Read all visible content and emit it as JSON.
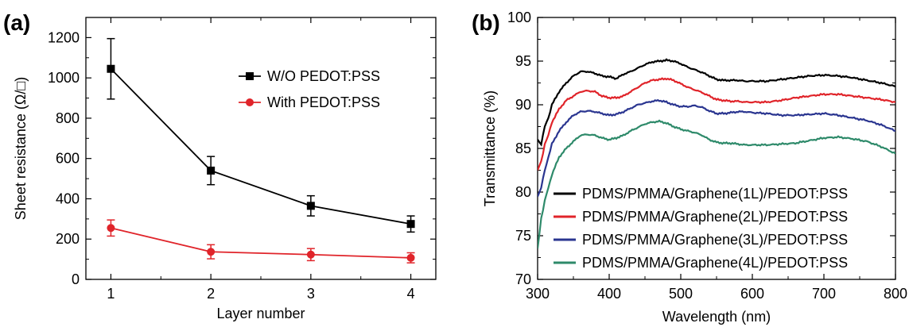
{
  "chart_data": [
    {
      "panel_label": "(a)",
      "type": "line",
      "xlabel": "Layer number",
      "ylabel": "Sheet resistance (Ω/□)",
      "xlim": [
        0.75,
        4.25
      ],
      "ylim": [
        0,
        1300
      ],
      "xticks": [
        1,
        2,
        3,
        4
      ],
      "yticks": [
        0,
        200,
        400,
        600,
        800,
        1000,
        1200
      ],
      "legend_placement": "top-right",
      "grid": false,
      "series": [
        {
          "name": "W/O PEDOT:PSS",
          "color": "#000000",
          "marker": "square",
          "x": [
            1,
            2,
            3,
            4
          ],
          "y": [
            1045,
            540,
            365,
            275
          ],
          "err": [
            150,
            70,
            50,
            40
          ]
        },
        {
          "name": "With PEDOT:PSS",
          "color": "#e0242a",
          "marker": "circle",
          "x": [
            1,
            2,
            3,
            4
          ],
          "y": [
            255,
            137,
            123,
            107
          ],
          "err": [
            40,
            35,
            30,
            25
          ]
        }
      ]
    },
    {
      "panel_label": "(b)",
      "type": "line",
      "xlabel": "Wavelength (nm)",
      "ylabel": "Transmittance (%)",
      "xlim": [
        300,
        800
      ],
      "ylim": [
        70,
        100
      ],
      "xticks": [
        300,
        400,
        500,
        600,
        700,
        800
      ],
      "yticks": [
        70,
        75,
        80,
        85,
        90,
        95,
        100
      ],
      "legend_placement": "bottom-right",
      "grid": false,
      "series": [
        {
          "name": "PDMS/PMMA/Graphene(1L)/PEDOT:PSS",
          "color": "#000000",
          "x": [
            300,
            305,
            310,
            315,
            320,
            330,
            340,
            350,
            360,
            370,
            380,
            390,
            400,
            410,
            420,
            430,
            440,
            450,
            460,
            470,
            480,
            490,
            500,
            510,
            520,
            530,
            540,
            550,
            560,
            570,
            580,
            590,
            600,
            620,
            640,
            660,
            680,
            700,
            720,
            740,
            760,
            780,
            800
          ],
          "y": [
            86.0,
            85.5,
            87.5,
            88.5,
            90.0,
            91.5,
            92.5,
            93.3,
            93.8,
            93.8,
            93.6,
            93.3,
            93.2,
            93.0,
            93.5,
            93.8,
            94.2,
            94.6,
            94.9,
            95.0,
            95.1,
            95.0,
            94.7,
            94.3,
            94.0,
            93.7,
            93.3,
            92.9,
            92.8,
            92.8,
            92.8,
            92.7,
            92.7,
            92.7,
            92.9,
            93.1,
            93.3,
            93.4,
            93.3,
            93.1,
            92.8,
            92.5,
            92.1
          ]
        },
        {
          "name": "PDMS/PMMA/Graphene(2L)/PEDOT:PSS",
          "color": "#e0242a",
          "x": [
            300,
            305,
            310,
            315,
            320,
            330,
            340,
            350,
            360,
            370,
            380,
            390,
            400,
            410,
            420,
            430,
            440,
            450,
            460,
            470,
            480,
            490,
            500,
            510,
            520,
            530,
            540,
            550,
            560,
            570,
            580,
            590,
            600,
            620,
            640,
            660,
            680,
            700,
            720,
            740,
            760,
            780,
            800
          ],
          "y": [
            82.5,
            83.5,
            85.5,
            86.5,
            88.0,
            89.5,
            90.5,
            91.0,
            91.5,
            91.6,
            91.5,
            91.0,
            90.8,
            90.8,
            91.0,
            91.5,
            92.0,
            92.5,
            92.8,
            92.9,
            93.0,
            92.8,
            92.4,
            92.0,
            91.7,
            91.4,
            91.0,
            90.6,
            90.5,
            90.4,
            90.4,
            90.3,
            90.3,
            90.3,
            90.5,
            90.8,
            91.0,
            91.2,
            91.2,
            91.0,
            90.8,
            90.6,
            90.3
          ]
        },
        {
          "name": "PDMS/PMMA/Graphene(3L)/PEDOT:PSS",
          "color": "#2a3590",
          "x": [
            300,
            305,
            310,
            315,
            320,
            330,
            340,
            350,
            360,
            370,
            380,
            390,
            400,
            410,
            420,
            430,
            440,
            450,
            460,
            470,
            480,
            490,
            500,
            510,
            520,
            530,
            540,
            550,
            560,
            570,
            580,
            590,
            600,
            620,
            640,
            660,
            680,
            700,
            720,
            740,
            760,
            780,
            800
          ],
          "y": [
            79.5,
            80.5,
            82.5,
            84.0,
            85.5,
            87.0,
            88.0,
            88.8,
            89.2,
            89.3,
            89.2,
            89.0,
            88.8,
            88.9,
            89.2,
            89.6,
            90.0,
            90.2,
            90.4,
            90.5,
            90.3,
            90.0,
            89.8,
            89.8,
            89.9,
            89.7,
            89.3,
            89.0,
            89.0,
            89.1,
            89.2,
            89.2,
            89.1,
            89.0,
            88.8,
            88.8,
            88.9,
            89.0,
            88.8,
            88.5,
            88.2,
            87.7,
            87.0
          ]
        },
        {
          "name": "PDMS/PMMA/Graphene(4L)/PEDOT:PSS",
          "color": "#2e8a6a",
          "x": [
            300,
            305,
            310,
            315,
            320,
            330,
            340,
            350,
            360,
            370,
            380,
            390,
            400,
            410,
            420,
            430,
            440,
            450,
            460,
            470,
            480,
            490,
            500,
            510,
            520,
            530,
            540,
            550,
            560,
            570,
            580,
            590,
            600,
            620,
            640,
            660,
            680,
            700,
            720,
            740,
            760,
            780,
            800
          ],
          "y": [
            73.5,
            77.0,
            79.0,
            80.5,
            82.0,
            84.0,
            85.0,
            85.8,
            86.5,
            86.6,
            86.5,
            86.2,
            86.0,
            86.2,
            86.5,
            87.0,
            87.4,
            87.8,
            88.0,
            88.1,
            87.9,
            87.5,
            87.2,
            87.0,
            86.8,
            86.5,
            86.0,
            85.7,
            85.6,
            85.6,
            85.5,
            85.4,
            85.4,
            85.4,
            85.5,
            85.6,
            85.9,
            86.2,
            86.3,
            86.1,
            85.8,
            85.2,
            84.4
          ]
        }
      ]
    }
  ]
}
